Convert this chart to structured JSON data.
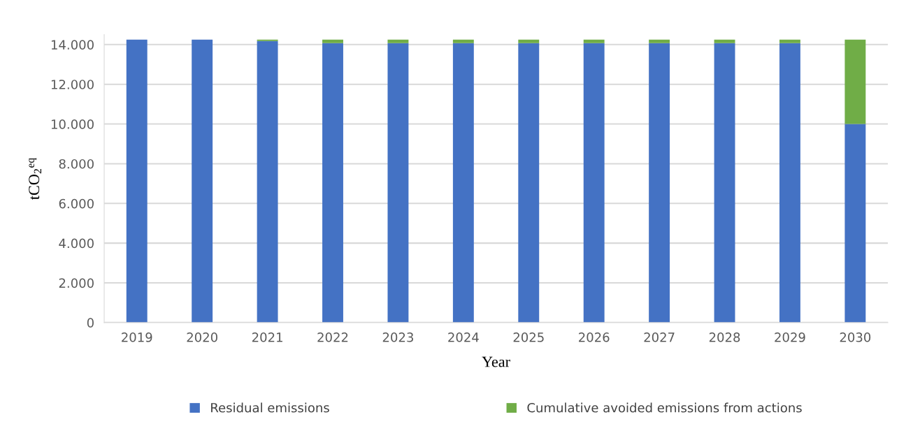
{
  "chart_data": {
    "type": "bar",
    "stacked": true,
    "xlabel": "Year",
    "ylabel": "tCO$_{2}$$^{eq}$",
    "categories": [
      "2019",
      "2020",
      "2021",
      "2022",
      "2023",
      "2024",
      "2025",
      "2026",
      "2027",
      "2028",
      "2029",
      "2030"
    ],
    "series": [
      {
        "name": "Residual emissions",
        "color": "#4472c4",
        "values": [
          14250,
          14250,
          14180,
          14070,
          14070,
          14070,
          14070,
          14070,
          14070,
          14070,
          14070,
          10000
        ]
      },
      {
        "name": "Cumulative avoided emissions from actions",
        "color": "#70ad47",
        "values": [
          0,
          0,
          70,
          180,
          180,
          180,
          180,
          180,
          180,
          180,
          180,
          4250
        ]
      }
    ],
    "ylim": [
      0,
      14500
    ],
    "yticks": [
      {
        "value": 0,
        "label": "0"
      },
      {
        "value": 2000,
        "label": "2.000"
      },
      {
        "value": 4000,
        "label": "4.000"
      },
      {
        "value": 6000,
        "label": "6.000"
      },
      {
        "value": 8000,
        "label": "8.000"
      },
      {
        "value": 10000,
        "label": "10.000"
      },
      {
        "value": 12000,
        "label": "12.000"
      },
      {
        "value": 14000,
        "label": "14.000"
      }
    ],
    "grid": "y",
    "legend": "bottom"
  }
}
